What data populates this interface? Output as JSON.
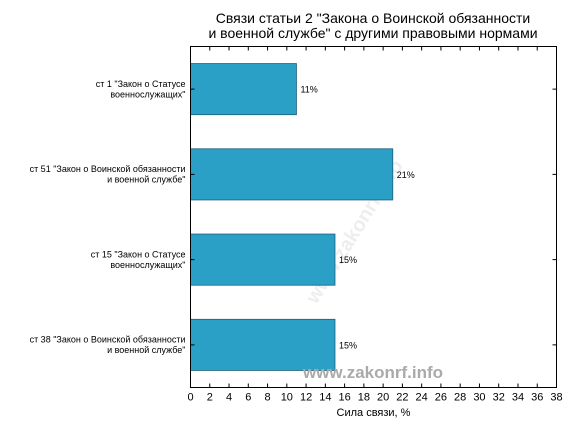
{
  "chart_data": {
    "type": "bar",
    "orientation": "horizontal",
    "title": "Связи статьи 2 \"Закона о Воинской обязанности и военной службе\" с другими правовыми нормами",
    "title_lines": [
      "Связи статьи 2 \"Закона о Воинской обязанности",
      "и военной службе\" с другими правовыми нормами"
    ],
    "categories": [
      "ст 1 \"Закон о Статусе военнослужащих\"",
      "ст 51 \"Закон о Воинской обязанности и военной службе\"",
      "ст 15 \"Закон о Статусе военнослужащих\"",
      "ст 38 \"Закон о Воинской обязанности и военной службе\""
    ],
    "category_lines": [
      [
        "ст 1 \"Закон о Статусе",
        "военнослужащих\""
      ],
      [
        "ст 51 \"Закон о Воинской обязанности",
        "и военной службе\""
      ],
      [
        "ст 15 \"Закон о Статусе",
        "военнослужащих\""
      ],
      [
        "ст 38 \"Закон о Воинской обязанности",
        "и военной службе\""
      ]
    ],
    "values": [
      11,
      21,
      15,
      15
    ],
    "value_labels": [
      "11%",
      "21%",
      "15%",
      "15%"
    ],
    "xlabel": "Сила связи, %",
    "ylabel": "",
    "xlim": [
      0,
      38
    ],
    "xticks": [
      0,
      2,
      4,
      6,
      8,
      10,
      12,
      14,
      16,
      18,
      20,
      22,
      24,
      26,
      28,
      30,
      32,
      34,
      36,
      38
    ],
    "grid": false,
    "bar_color": "#2aa0c6",
    "bar_edge_color": "#1a5f78"
  },
  "watermark": "www.zakonrf.info"
}
